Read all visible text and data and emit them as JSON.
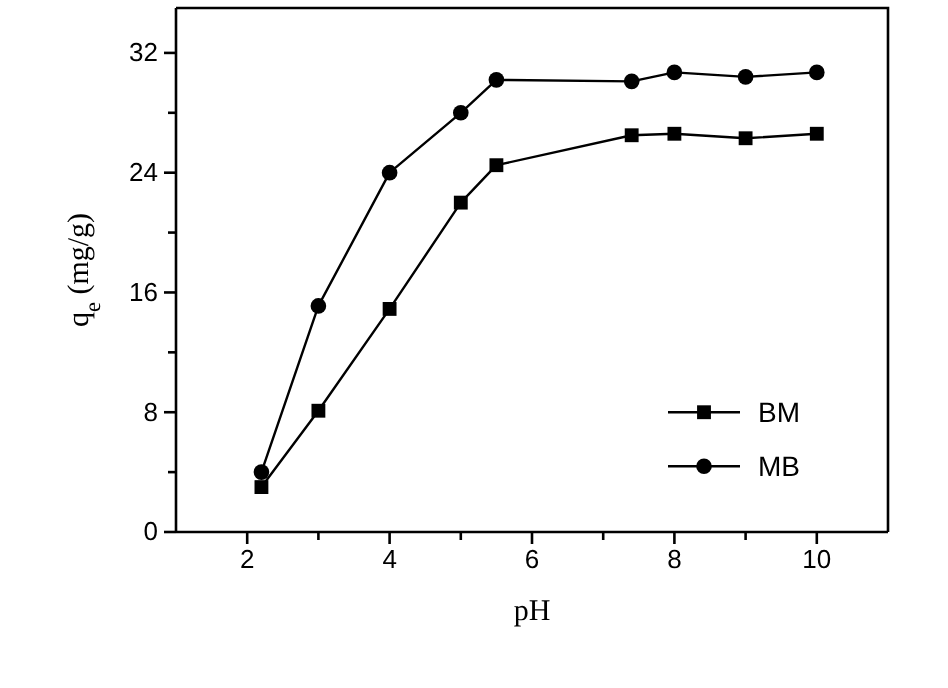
{
  "chart_data": {
    "type": "line",
    "xlabel": "pH",
    "ylabel": "q$_{e}$ (mg/g)",
    "xlim": [
      1,
      11
    ],
    "xticks": [
      2,
      {
        "value": 3,
        "label": null
      },
      4,
      {
        "value": 5,
        "label": null
      },
      6,
      {
        "value": 7,
        "label": null
      },
      8,
      {
        "value": 9,
        "label": null
      },
      10
    ],
    "ylim": [
      0,
      35
    ],
    "yticks": [
      0,
      {
        "value": 4,
        "label": null
      },
      8,
      {
        "value": 12,
        "label": null
      },
      16,
      {
        "value": 20,
        "label": null
      },
      24,
      {
        "value": 28,
        "label": null
      },
      32
    ],
    "x": [
      2.2,
      3,
      4,
      5,
      5.5,
      7.4,
      8,
      9,
      10
    ],
    "series": [
      {
        "name": "BM",
        "color": "#000000",
        "marker": "square",
        "values": [
          3.0,
          8.1,
          14.9,
          22.0,
          24.5,
          26.5,
          26.6,
          26.3,
          26.6
        ]
      },
      {
        "name": "MB",
        "color": "#000000",
        "marker": "circle",
        "values": [
          4.0,
          15.1,
          24.0,
          28.0,
          30.2,
          30.1,
          30.7,
          30.4,
          30.7
        ]
      }
    ],
    "legend": "bottom right",
    "grid": false,
    "line_style": "solid"
  }
}
